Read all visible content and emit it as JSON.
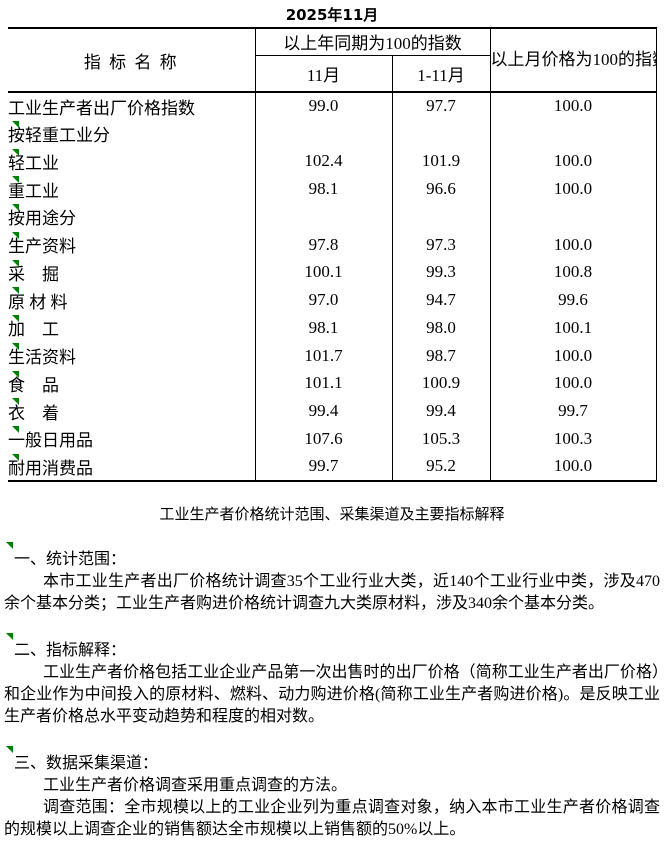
{
  "title": "2025年11月",
  "table": {
    "col_header_name": "指 标 名 称",
    "col_group_yoy": "以上年同期为100的指数",
    "col_month": "11月",
    "col_ytd": "1-11月",
    "col_mom": "以上月价格为100的指数",
    "rows": [
      {
        "label": "工业生产者出厂价格指数",
        "indent": 0,
        "flag": false,
        "m": "99.0",
        "ytd": "97.7",
        "mom": "100.0"
      },
      {
        "label": "按轻重工业分",
        "indent": 1,
        "flag": true,
        "m": "",
        "ytd": "",
        "mom": ""
      },
      {
        "label": "轻工业",
        "indent": 2,
        "flag": true,
        "m": "102.4",
        "ytd": "101.9",
        "mom": "100.0"
      },
      {
        "label": "重工业",
        "indent": 2,
        "flag": true,
        "m": "98.1",
        "ytd": "96.6",
        "mom": "100.0"
      },
      {
        "label": "按用途分",
        "indent": 1,
        "flag": true,
        "m": "",
        "ytd": "",
        "mom": ""
      },
      {
        "label": "生产资料",
        "indent": 2,
        "flag": true,
        "m": "97.8",
        "ytd": "97.3",
        "mom": "100.0"
      },
      {
        "label": "采　掘",
        "indent": 3,
        "flag": true,
        "m": "100.1",
        "ytd": "99.3",
        "mom": "100.8"
      },
      {
        "label": "原 材 料",
        "indent": 3,
        "flag": true,
        "m": "97.0",
        "ytd": "94.7",
        "mom": "99.6"
      },
      {
        "label": "加　工",
        "indent": 3,
        "flag": true,
        "m": "98.1",
        "ytd": "98.0",
        "mom": "100.1"
      },
      {
        "label": "生活资料",
        "indent": 2,
        "flag": true,
        "m": "101.7",
        "ytd": "98.7",
        "mom": "100.0"
      },
      {
        "label": "食　品",
        "indent": 3,
        "flag": true,
        "m": "101.1",
        "ytd": "100.9",
        "mom": "100.0"
      },
      {
        "label": "衣　着",
        "indent": 3,
        "flag": true,
        "m": "99.4",
        "ytd": "99.4",
        "mom": "99.7"
      },
      {
        "label": "一般日用品",
        "indent": 3,
        "flag": true,
        "m": "107.6",
        "ytd": "105.3",
        "mom": "100.3"
      },
      {
        "label": "耐用消费品",
        "indent": 3,
        "flag": true,
        "m": "99.7",
        "ytd": "95.2",
        "mom": "100.0"
      }
    ]
  },
  "notes": {
    "heading": "工业生产者价格统计范围、采集渠道及主要指标解释",
    "sections": [
      {
        "title": "一、统计范围：",
        "flag": true,
        "paragraphs": [
          "本市工业生产者出厂价格统计调查35个工业行业大类，近140个工业行业中类，涉及470余个基本分类；工业生产者购进价格统计调查九大类原材料，涉及340余个基本分类。"
        ]
      },
      {
        "title": "二、指标解释：",
        "flag": true,
        "paragraphs": [
          "工业生产者价格包括工业企业产品第一次出售时的出厂价格（简称工业生产者出厂价格）和企业作为中间投入的原材料、燃料、动力购进价格(简称工业生产者购进价格)。是反映工业生产者价格总水平变动趋势和程度的相对数。"
        ]
      },
      {
        "title": "三、数据采集渠道：",
        "flag": true,
        "paragraphs": [
          "工业生产者价格调查采用重点调查的方法。",
          "调查范围：全市规模以上的工业企业列为重点调查对象，纳入本市工业生产者价格调查的规模以上调查企业的销售额达全市规模以上销售额的50%以上。"
        ]
      }
    ]
  },
  "colors": {
    "flag_green": "#008000",
    "border": "#000000",
    "text": "#000000",
    "background": "#ffffff"
  }
}
